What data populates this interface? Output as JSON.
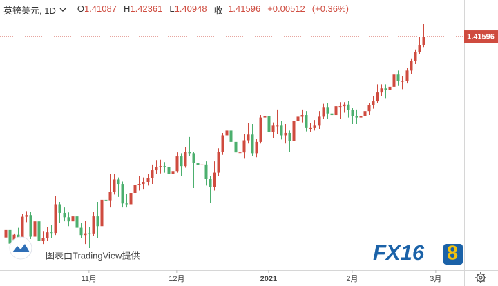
{
  "header": {
    "symbol": "英镑美元, 1D",
    "o_label": "O",
    "h_label": "H",
    "l_label": "L",
    "c_label": "收=",
    "change": "+0.00512",
    "change_pct": "(+0.36%)"
  },
  "watermark": {
    "text": "图表由TradingView提供",
    "logo_main": "FX16",
    "logo_accent": "8"
  },
  "chart_data": {
    "type": "candlestick",
    "up_color": "#cf4b3f",
    "down_color": "#4caf6e",
    "xlim": [
      -1.3,
      109.8
    ],
    "xticks": [
      {
        "value": 20,
        "label": "11月"
      },
      {
        "value": 41,
        "label": "12月"
      },
      {
        "value": 63,
        "label": "2021"
      },
      {
        "value": 83,
        "label": "2月"
      },
      {
        "value": 103,
        "label": "3月"
      }
    ],
    "ylim": [
      1.2719,
      1.4385
    ],
    "open": [
      1.292,
      1.2966,
      1.2882,
      1.2937,
      1.292,
      1.3048,
      1.3058,
      1.2925,
      1.302,
      1.29,
      1.2916,
      1.2952,
      1.2948,
      1.3125,
      1.3072,
      1.3045,
      1.302,
      1.305,
      1.298,
      1.2935,
      1.2946,
      1.2945,
      1.305,
      1.299,
      1.3153,
      1.315,
      1.32,
      1.3278,
      1.325,
      1.313,
      1.3125,
      1.3195,
      1.3243,
      1.325,
      1.3263,
      1.3288,
      1.3335,
      1.3355,
      1.336,
      1.3355,
      1.331,
      1.333,
      1.342,
      1.336,
      1.345,
      1.344,
      1.338,
      1.3365,
      1.337,
      1.328,
      1.323,
      1.332,
      1.345,
      1.355,
      1.358,
      1.351,
      1.3445,
      1.3445,
      1.352,
      1.3555,
      1.344,
      1.351,
      1.366,
      1.367,
      1.357,
      1.361,
      1.361,
      1.355,
      1.3565,
      1.3515,
      1.364,
      1.3665,
      1.3675,
      1.3595,
      1.3595,
      1.361,
      1.3665,
      1.3725,
      1.3685,
      1.3675,
      1.373,
      1.373,
      1.374,
      1.3705,
      1.367,
      1.366,
      1.367,
      1.37,
      1.3735,
      1.376,
      1.3815,
      1.384,
      1.383,
      1.385,
      1.3925,
      1.3885,
      1.3885,
      1.395,
      1.401,
      1.4065,
      1.41087
    ],
    "high": [
      1.299,
      1.2985,
      1.2945,
      1.298,
      1.3065,
      1.3083,
      1.308,
      1.3065,
      1.303,
      1.296,
      1.2985,
      1.2995,
      1.3175,
      1.314,
      1.3105,
      1.3075,
      1.3085,
      1.306,
      1.301,
      1.3025,
      1.2985,
      1.308,
      1.314,
      1.3175,
      1.3175,
      1.331,
      1.331,
      1.329,
      1.3265,
      1.319,
      1.3225,
      1.3275,
      1.33,
      1.329,
      1.331,
      1.337,
      1.3398,
      1.34,
      1.3385,
      1.337,
      1.3395,
      1.3445,
      1.344,
      1.348,
      1.354,
      1.345,
      1.344,
      1.346,
      1.339,
      1.33,
      1.339,
      1.347,
      1.3565,
      1.3625,
      1.359,
      1.352,
      1.3475,
      1.356,
      1.3625,
      1.362,
      1.353,
      1.3675,
      1.3705,
      1.3705,
      1.363,
      1.371,
      1.364,
      1.362,
      1.358,
      1.367,
      1.3705,
      1.371,
      1.37,
      1.3625,
      1.3645,
      1.37,
      1.3745,
      1.375,
      1.372,
      1.3745,
      1.3755,
      1.3755,
      1.376,
      1.372,
      1.371,
      1.3705,
      1.371,
      1.375,
      1.379,
      1.3865,
      1.3865,
      1.3865,
      1.387,
      1.3955,
      1.395,
      1.3915,
      1.3965,
      1.4025,
      1.408,
      1.416,
      1.42361
    ],
    "low": [
      1.2905,
      1.2862,
      1.2845,
      1.29,
      1.291,
      1.3015,
      1.291,
      1.2905,
      1.2865,
      1.288,
      1.29,
      1.2915,
      1.2935,
      1.301,
      1.302,
      1.299,
      1.2995,
      1.296,
      1.2915,
      1.288,
      1.2855,
      1.293,
      1.2915,
      1.2975,
      1.308,
      1.3105,
      1.3185,
      1.317,
      1.3105,
      1.3105,
      1.311,
      1.3185,
      1.321,
      1.322,
      1.324,
      1.325,
      1.331,
      1.3315,
      1.332,
      1.329,
      1.3295,
      1.332,
      1.33,
      1.335,
      1.342,
      1.3225,
      1.3305,
      1.33,
      1.324,
      1.3135,
      1.321,
      1.33,
      1.343,
      1.352,
      1.347,
      1.319,
      1.33,
      1.341,
      1.35,
      1.342,
      1.3415,
      1.35,
      1.3595,
      1.352,
      1.3535,
      1.356,
      1.3525,
      1.35,
      1.345,
      1.3495,
      1.361,
      1.363,
      1.3575,
      1.357,
      1.358,
      1.359,
      1.365,
      1.365,
      1.36,
      1.366,
      1.365,
      1.369,
      1.366,
      1.362,
      1.362,
      1.362,
      1.3565,
      1.3675,
      1.3715,
      1.375,
      1.379,
      1.378,
      1.3805,
      1.384,
      1.3855,
      1.3835,
      1.387,
      1.393,
      1.399,
      1.405,
      1.40948
    ],
    "close": [
      1.2966,
      1.2882,
      1.2937,
      1.292,
      1.3048,
      1.3058,
      1.2925,
      1.302,
      1.29,
      1.2916,
      1.2952,
      1.2948,
      1.3125,
      1.3072,
      1.3045,
      1.302,
      1.305,
      1.298,
      1.2935,
      1.2946,
      1.2945,
      1.305,
      1.299,
      1.3153,
      1.315,
      1.32,
      1.3278,
      1.325,
      1.313,
      1.3125,
      1.3195,
      1.3243,
      1.325,
      1.3263,
      1.3288,
      1.3335,
      1.3355,
      1.336,
      1.3355,
      1.331,
      1.333,
      1.342,
      1.336,
      1.345,
      1.344,
      1.338,
      1.3365,
      1.337,
      1.328,
      1.323,
      1.332,
      1.345,
      1.355,
      1.358,
      1.351,
      1.3445,
      1.3445,
      1.352,
      1.3555,
      1.344,
      1.351,
      1.366,
      1.367,
      1.357,
      1.361,
      1.361,
      1.355,
      1.3565,
      1.3515,
      1.364,
      1.3665,
      1.3675,
      1.3595,
      1.3595,
      1.361,
      1.3665,
      1.3725,
      1.3685,
      1.3675,
      1.373,
      1.373,
      1.374,
      1.3705,
      1.367,
      1.366,
      1.367,
      1.37,
      1.3735,
      1.376,
      1.3815,
      1.384,
      1.383,
      1.385,
      1.3925,
      1.3885,
      1.3885,
      1.395,
      1.401,
      1.4065,
      1.41084,
      1.41596
    ]
  }
}
